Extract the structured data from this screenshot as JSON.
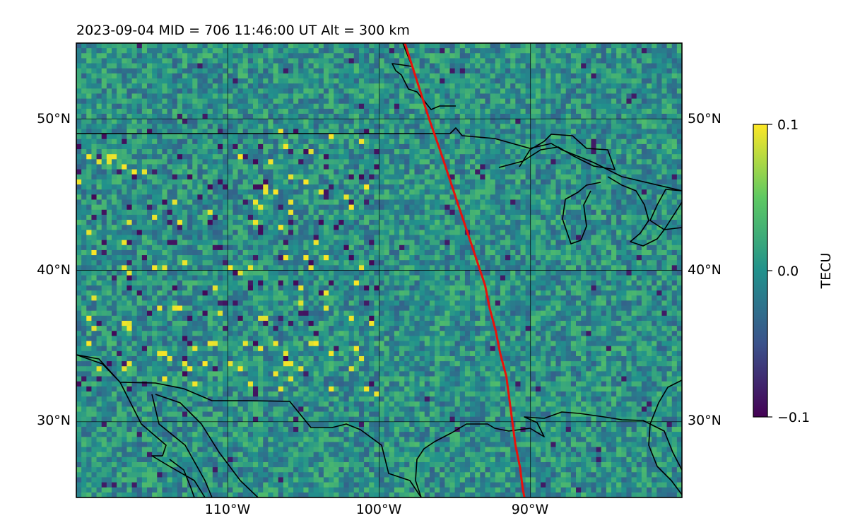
{
  "chart_data": {
    "type": "heatmap",
    "title": "2023-09-04  MID = 706    11:46:00  UT  Alt = 300 km",
    "x_ticks": [
      {
        "value": -110,
        "label": "110°W"
      },
      {
        "value": -100,
        "label": "100°W"
      },
      {
        "value": -90,
        "label": "90°W"
      }
    ],
    "y_ticks": [
      {
        "value": 50,
        "label": "50°N"
      },
      {
        "value": 40,
        "label": "40°N"
      },
      {
        "value": 30,
        "label": "30°N"
      }
    ],
    "xlim": [
      -120,
      -80
    ],
    "ylim": [
      25,
      55
    ],
    "grid": true,
    "colorbar": {
      "label": "TECU",
      "min": -0.1,
      "max": 0.1,
      "ticks": [
        {
          "value": 0.1,
          "label": "0.1"
        },
        {
          "value": 0.0,
          "label": "0.0"
        },
        {
          "value": -0.1,
          "label": "−0.1"
        }
      ],
      "colormap": "viridis",
      "colors": [
        "#440154",
        "#3b528b",
        "#21918c",
        "#5ec962",
        "#fde725"
      ]
    },
    "track": {
      "color": "#e8120c",
      "points": [
        [
          -98.3,
          55.0
        ],
        [
          -97.5,
          52.5
        ],
        [
          -96.7,
          50.0
        ],
        [
          -96.0,
          48.0
        ],
        [
          -95.5,
          46.5
        ],
        [
          -95.0,
          45.0
        ],
        [
          -94.5,
          43.5
        ],
        [
          -94.0,
          42.0
        ],
        [
          -93.5,
          40.5
        ],
        [
          -93.0,
          39.0
        ],
        [
          -92.7,
          37.5
        ],
        [
          -92.3,
          36.0
        ],
        [
          -92.0,
          34.5
        ],
        [
          -91.6,
          33.0
        ],
        [
          -91.4,
          31.5
        ],
        [
          -91.2,
          30.0
        ],
        [
          -91.0,
          28.5
        ],
        [
          -90.7,
          27.0
        ],
        [
          -90.5,
          25.5
        ],
        [
          -90.4,
          25.0
        ]
      ]
    }
  }
}
